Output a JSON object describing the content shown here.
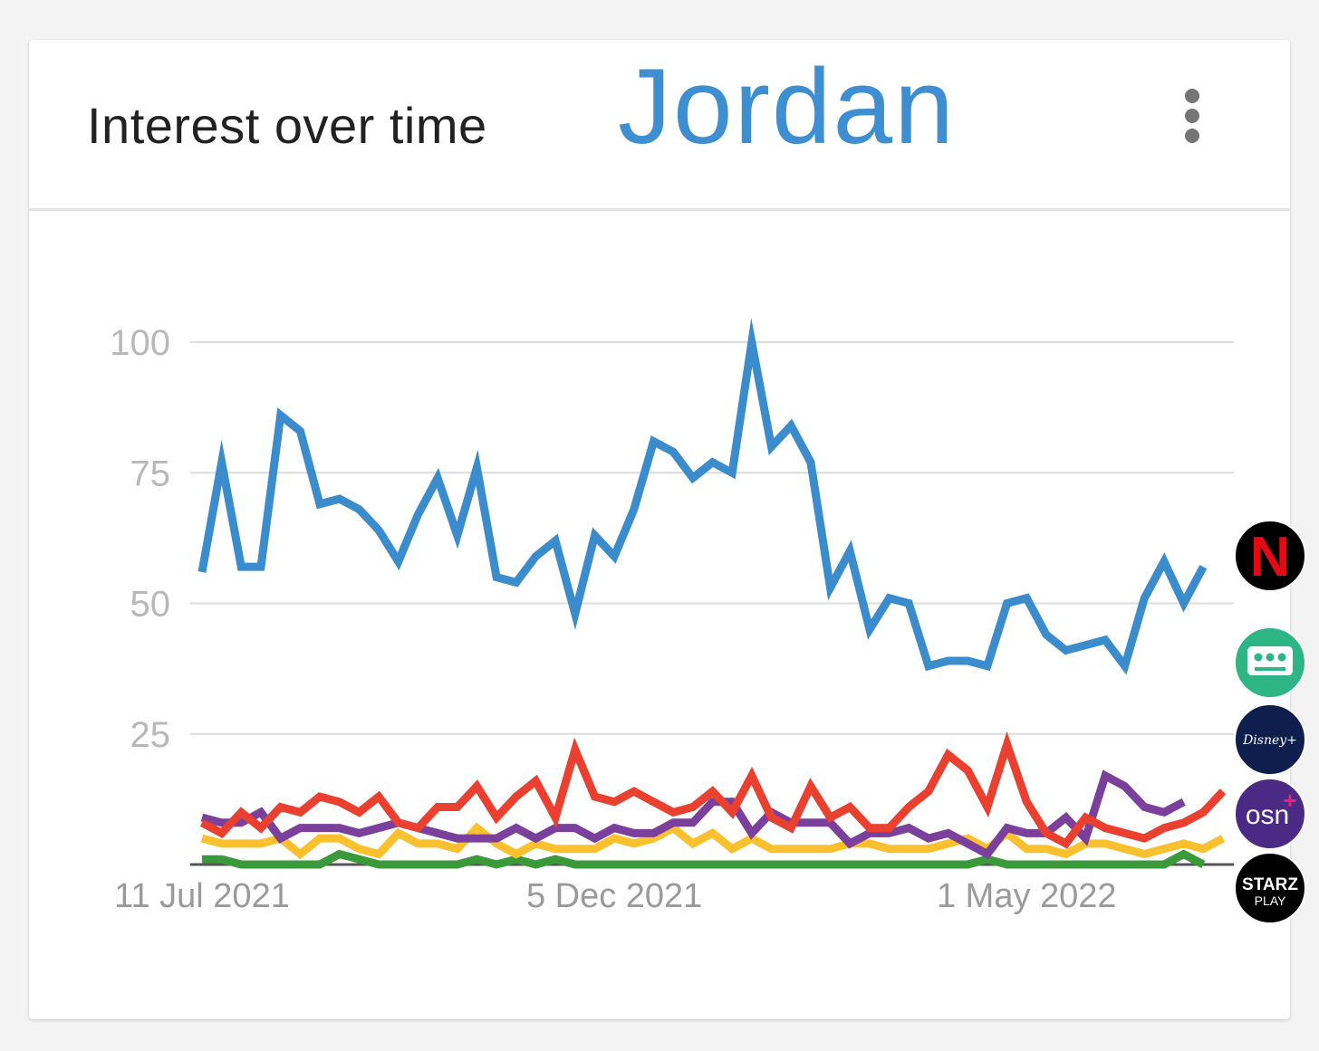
{
  "header": {
    "title": "Interest over time",
    "region": "Jordan"
  },
  "legend_logos": [
    {
      "name": "netflix",
      "text": "N",
      "bg": "#000000",
      "fg": "#e50914"
    },
    {
      "name": "shahid",
      "text": "",
      "bg": "#2eb586",
      "fg": "#ffffff"
    },
    {
      "name": "disney-plus",
      "text": "Disney+",
      "bg": "#0f1f4d",
      "fg": "#ffffff"
    },
    {
      "name": "osn-plus",
      "text": "osn+",
      "bg": "#4b2a86",
      "fg": "#ffffff"
    },
    {
      "name": "starz-play",
      "text": "STARZ",
      "text2": "PLAY",
      "bg": "#000000",
      "fg": "#ffffff"
    }
  ],
  "chart_data": {
    "type": "line",
    "x_tick_labels": [
      "11 Jul 2021",
      "5 Dec 2021",
      "1 May 2022"
    ],
    "x_tick_weeks": [
      0,
      21,
      42
    ],
    "y_ticks": [
      25,
      50,
      75,
      100
    ],
    "ylim": [
      0,
      100
    ],
    "grid": true,
    "series": [
      {
        "color": "#3b8ccc",
        "values": [
          56,
          77,
          57,
          57,
          86,
          83,
          69,
          70,
          68,
          64,
          58,
          67,
          74,
          63,
          76,
          55,
          54,
          59,
          62,
          48,
          63,
          59,
          68,
          81,
          79,
          74,
          77,
          75,
          100,
          80,
          84,
          77,
          53,
          60,
          45,
          51,
          50,
          38,
          39,
          39,
          38,
          50,
          51,
          44,
          41,
          42,
          43,
          38,
          51,
          58,
          50,
          57
        ]
      },
      {
        "color": "#e9402f",
        "values": [
          8,
          6,
          10,
          7,
          11,
          10,
          13,
          12,
          10,
          13,
          8,
          7,
          11,
          11,
          15,
          9,
          13,
          16,
          9,
          22,
          13,
          12,
          14,
          12,
          10,
          11,
          14,
          10,
          17,
          9,
          7,
          15,
          9,
          11,
          7,
          7,
          11,
          14,
          21,
          18,
          11,
          23,
          12,
          6,
          4,
          9,
          7,
          6,
          5,
          7,
          8,
          10,
          14
        ]
      },
      {
        "color": "#fbc02d",
        "values": [
          5,
          4,
          4,
          4,
          5,
          2,
          5,
          5,
          3,
          2,
          6,
          4,
          4,
          3,
          7,
          4,
          2,
          4,
          3,
          3,
          3,
          5,
          4,
          5,
          7,
          4,
          6,
          3,
          5,
          3,
          3,
          3,
          3,
          4,
          4,
          3,
          3,
          3,
          4,
          5,
          3,
          6,
          3,
          3,
          2,
          4,
          4,
          3,
          2,
          3,
          4,
          3,
          5
        ]
      },
      {
        "color": "#7b3f9c",
        "values": [
          9,
          8,
          8,
          10,
          5,
          7,
          7,
          7,
          6,
          7,
          8,
          7,
          6,
          5,
          5,
          5,
          7,
          5,
          7,
          7,
          5,
          7,
          6,
          6,
          8,
          8,
          12,
          12,
          6,
          10,
          8,
          8,
          8,
          4,
          6,
          6,
          7,
          5,
          6,
          4,
          2,
          7,
          6,
          6,
          9,
          5,
          17,
          15,
          11,
          10,
          12
        ]
      },
      {
        "color": "#3a9a3a",
        "values": [
          1,
          1,
          0,
          0,
          0,
          0,
          0,
          2,
          1,
          0,
          0,
          0,
          0,
          0,
          1,
          0,
          1,
          0,
          1,
          0,
          0,
          0,
          0,
          0,
          0,
          0,
          0,
          0,
          0,
          0,
          0,
          0,
          0,
          0,
          0,
          0,
          0,
          0,
          0,
          0,
          1,
          0,
          0,
          0,
          0,
          0,
          0,
          0,
          0,
          0,
          2,
          0
        ]
      }
    ]
  }
}
